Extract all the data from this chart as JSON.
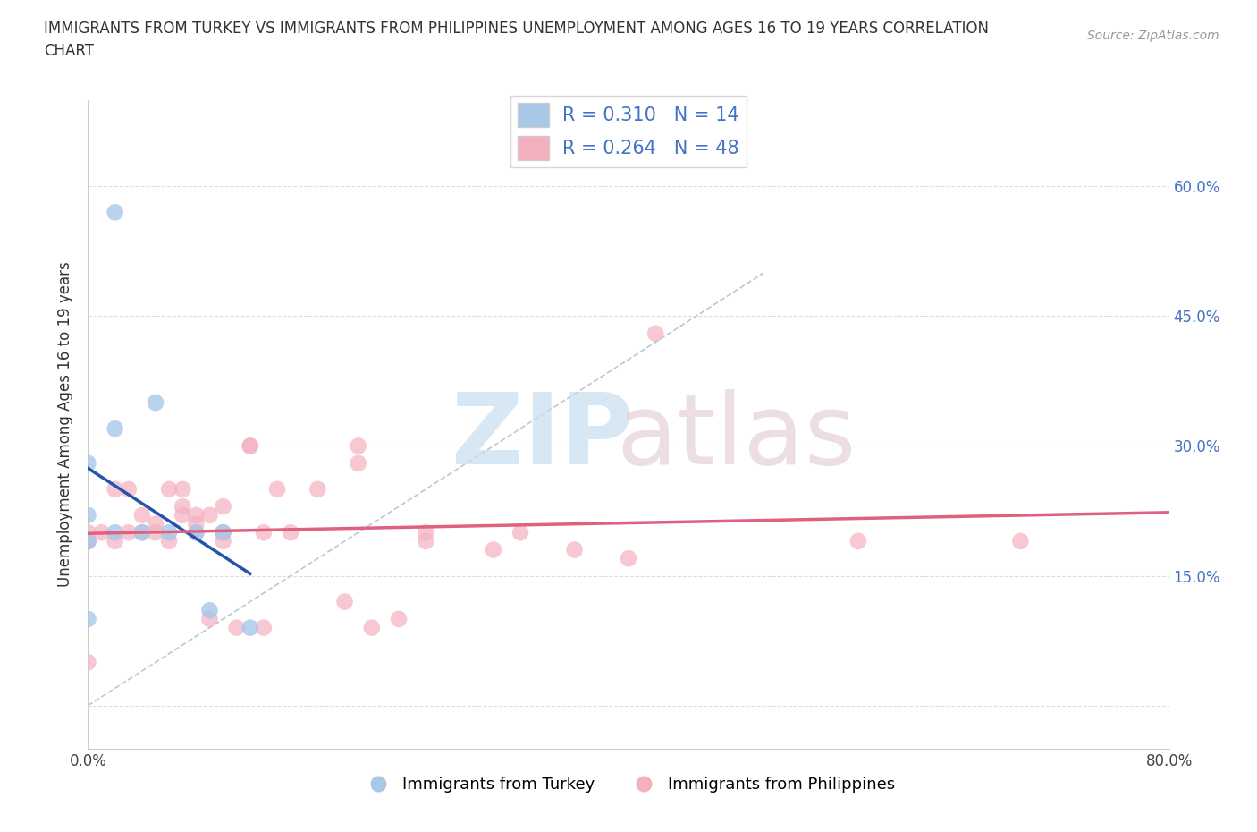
{
  "title": "IMMIGRANTS FROM TURKEY VS IMMIGRANTS FROM PHILIPPINES UNEMPLOYMENT AMONG AGES 16 TO 19 YEARS CORRELATION\nCHART",
  "source_text": "Source: ZipAtlas.com",
  "ylabel": "Unemployment Among Ages 16 to 19 years",
  "xlim": [
    0.0,
    0.8
  ],
  "ylim": [
    -0.05,
    0.7
  ],
  "xticks": [
    0.0,
    0.1,
    0.2,
    0.3,
    0.4,
    0.5,
    0.6,
    0.7,
    0.8
  ],
  "xticklabels": [
    "0.0%",
    "",
    "",
    "",
    "",
    "",
    "",
    "",
    "80.0%"
  ],
  "yticks": [
    0.0,
    0.15,
    0.3,
    0.45,
    0.6
  ],
  "yticklabels_right": [
    "",
    "15.0%",
    "30.0%",
    "45.0%",
    "60.0%"
  ],
  "turkey_color": "#a8c8e8",
  "turkey_line_color": "#2255aa",
  "philippines_color": "#f5b0c0",
  "philippines_line_color": "#e06080",
  "R_turkey": 0.31,
  "N_turkey": 14,
  "R_philippines": 0.264,
  "N_philippines": 48,
  "turkey_x": [
    0.02,
    0.0,
    0.0,
    0.0,
    0.02,
    0.02,
    0.04,
    0.05,
    0.06,
    0.08,
    0.09,
    0.1,
    0.12,
    0.0
  ],
  "turkey_y": [
    0.57,
    0.28,
    0.22,
    0.19,
    0.32,
    0.2,
    0.2,
    0.35,
    0.2,
    0.2,
    0.11,
    0.2,
    0.09,
    0.1
  ],
  "philippines_x": [
    0.0,
    0.0,
    0.0,
    0.0,
    0.01,
    0.02,
    0.02,
    0.03,
    0.03,
    0.04,
    0.04,
    0.05,
    0.05,
    0.06,
    0.06,
    0.07,
    0.07,
    0.07,
    0.08,
    0.08,
    0.08,
    0.09,
    0.09,
    0.1,
    0.1,
    0.1,
    0.11,
    0.12,
    0.12,
    0.13,
    0.13,
    0.14,
    0.15,
    0.17,
    0.19,
    0.2,
    0.2,
    0.21,
    0.23,
    0.25,
    0.25,
    0.3,
    0.32,
    0.36,
    0.4,
    0.42,
    0.57,
    0.69
  ],
  "philippines_y": [
    0.2,
    0.19,
    0.19,
    0.05,
    0.2,
    0.19,
    0.25,
    0.2,
    0.25,
    0.2,
    0.22,
    0.2,
    0.21,
    0.19,
    0.25,
    0.22,
    0.23,
    0.25,
    0.21,
    0.22,
    0.2,
    0.22,
    0.1,
    0.23,
    0.2,
    0.19,
    0.09,
    0.3,
    0.3,
    0.2,
    0.09,
    0.25,
    0.2,
    0.25,
    0.12,
    0.28,
    0.3,
    0.09,
    0.1,
    0.2,
    0.19,
    0.18,
    0.2,
    0.18,
    0.17,
    0.43,
    0.19,
    0.19
  ],
  "ref_line_x": [
    0.0,
    0.5
  ],
  "ref_line_y": [
    0.0,
    0.5
  ],
  "background_color": "#ffffff",
  "grid_color": "#dddddd",
  "watermark_zip_color": "#c8ddf0",
  "watermark_atlas_color": "#e0c8d5"
}
